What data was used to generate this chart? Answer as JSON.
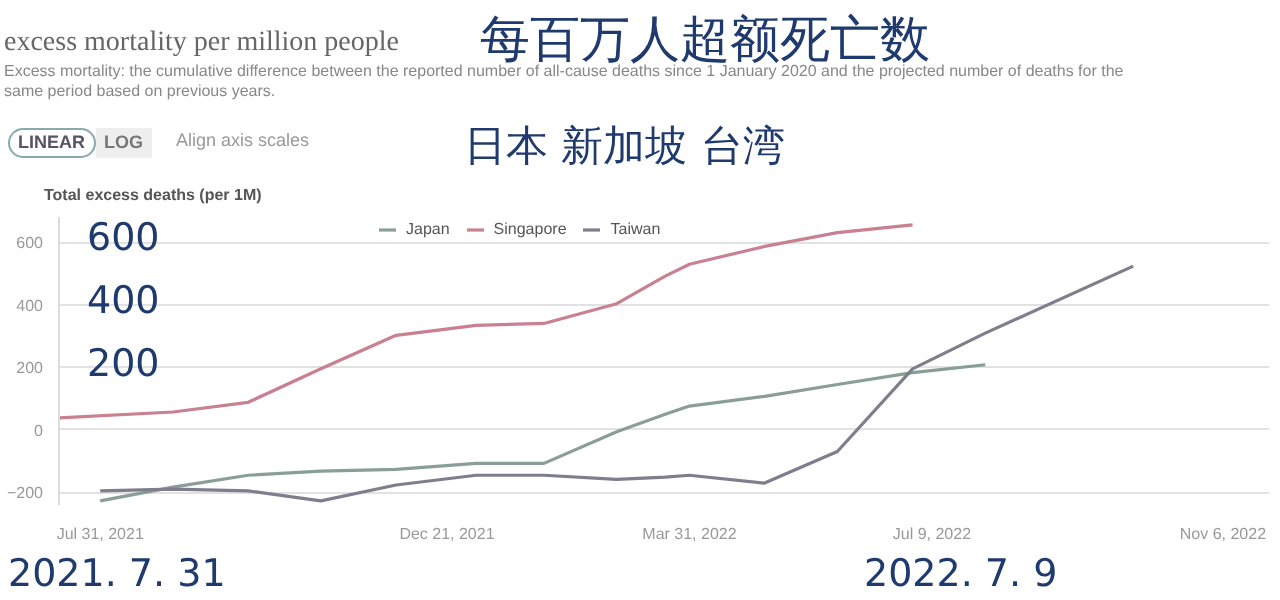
{
  "chart_data": {
    "type": "line",
    "title": "excess mortality per million people",
    "subtitle": "Excess mortality: the cumulative difference between the reported number of all-cause deaths since 1 January 2020 and the projected number of deaths for the same period based on previous years.",
    "ylabel": "Total excess deaths (per 1M)",
    "annotations": [
      "每百万人超额死亡数",
      "日本 新加坡 台湾",
      "LINEAR",
      "LOG",
      "Align axis scales",
      "600",
      "400",
      "200",
      "2021. 7. 31",
      "2022. 7. 9"
    ],
    "series": [
      {
        "name": "Japan",
        "color": "#8a9e98",
        "x": [
          "2021-07-31",
          "2021-08-30",
          "2021-09-30",
          "2021-10-30",
          "2021-11-30",
          "2022-01-02",
          "2022-01-30",
          "2022-03-01",
          "2022-03-21",
          "2022-03-31",
          "2022-05-01",
          "2022-05-31",
          "2022-07-01",
          "2022-07-31"
        ],
        "values": [
          -227,
          -183,
          -145,
          -132,
          -126,
          -107,
          -107,
          -6,
          50,
          76,
          107,
          145,
          183,
          208
        ]
      },
      {
        "name": "Singapore",
        "color": "#c98090",
        "x": [
          "2021-07-14",
          "2021-08-30",
          "2021-09-30",
          "2021-10-30",
          "2021-11-30",
          "2022-01-02",
          "2022-01-30",
          "2022-03-01",
          "2022-03-21",
          "2022-03-31",
          "2022-05-01",
          "2022-05-31",
          "2022-07-01"
        ],
        "values": [
          38,
          57,
          88,
          195,
          302,
          334,
          340,
          403,
          491,
          529,
          586,
          630,
          655
        ]
      },
      {
        "name": "Taiwan",
        "color": "#7e7e8c",
        "x": [
          "2021-07-31",
          "2021-08-30",
          "2021-09-30",
          "2021-10-30",
          "2021-11-30",
          "2022-01-02",
          "2022-01-30",
          "2022-03-01",
          "2022-03-21",
          "2022-03-31",
          "2022-05-01",
          "2022-05-31",
          "2022-07-01",
          "2022-07-31",
          "2022-09-30"
        ],
        "values": [
          -195,
          -189,
          -195,
          -227,
          -176,
          -145,
          -145,
          -158,
          -151,
          -145,
          -170,
          -69,
          195,
          309,
          523
        ]
      }
    ],
    "xlim": [
      "2021-07-14",
      "2022-11-25"
    ],
    "xticks": [
      {
        "value": "2021-07-31",
        "label": "Jul 31, 2021"
      },
      {
        "value": "2021-12-21",
        "label": "Dec 21, 2021"
      },
      {
        "value": "2022-03-31",
        "label": "Mar 31, 2022"
      },
      {
        "value": "2022-07-09",
        "label": "Jul 9, 2022"
      },
      {
        "value": "2022-11-06",
        "label": "Nov 6, 2022"
      }
    ],
    "ylim": [
      -240,
      680
    ],
    "yticks": [
      -200,
      0,
      200,
      400,
      600
    ],
    "grid": "y",
    "legend": "top",
    "line_style": "solid",
    "marker": "none"
  }
}
